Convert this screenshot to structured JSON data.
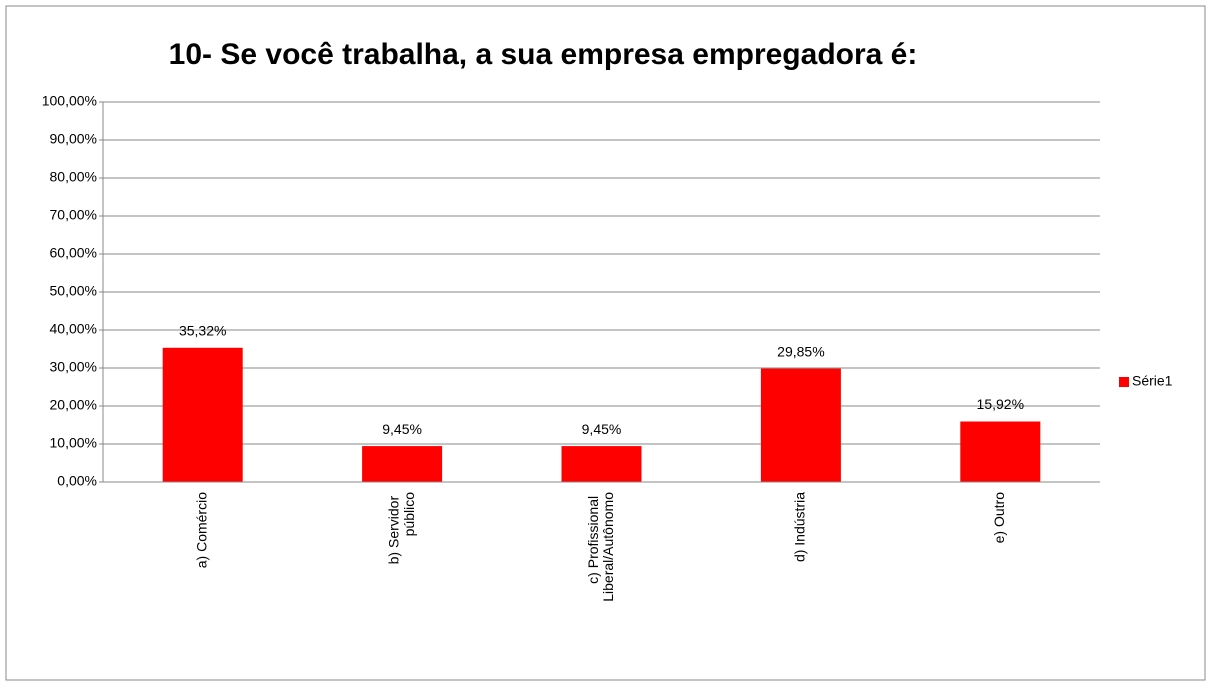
{
  "chart_data": {
    "type": "bar",
    "title": "10- Se você trabalha, a sua empresa empregadora é:",
    "categories": [
      "a) Comércio",
      "b) Servidor público",
      "c) Profissional Liberal/Autônomo",
      "d) Indústria",
      "e) Outro"
    ],
    "series": [
      {
        "name": "Série1",
        "color": "#ff0000",
        "values": [
          35.32,
          9.45,
          9.45,
          29.85,
          15.92
        ],
        "value_labels": [
          "35,32%",
          "9,45%",
          "9,45%",
          "29,85%",
          "15,92%"
        ]
      }
    ],
    "ylim": [
      0,
      100
    ],
    "yticks": [
      {
        "value": 0,
        "label": "0,00%"
      },
      {
        "value": 10,
        "label": "10,00%"
      },
      {
        "value": 20,
        "label": "20,00%"
      },
      {
        "value": 30,
        "label": "30,00%"
      },
      {
        "value": 40,
        "label": "40,00%"
      },
      {
        "value": 50,
        "label": "50,00%"
      },
      {
        "value": 60,
        "label": "60,00%"
      },
      {
        "value": 70,
        "label": "70,00%"
      },
      {
        "value": 80,
        "label": "80,00%"
      },
      {
        "value": 90,
        "label": "90,00%"
      },
      {
        "value": 100,
        "label": "100,00%"
      }
    ],
    "grid": true,
    "legend": "right"
  }
}
